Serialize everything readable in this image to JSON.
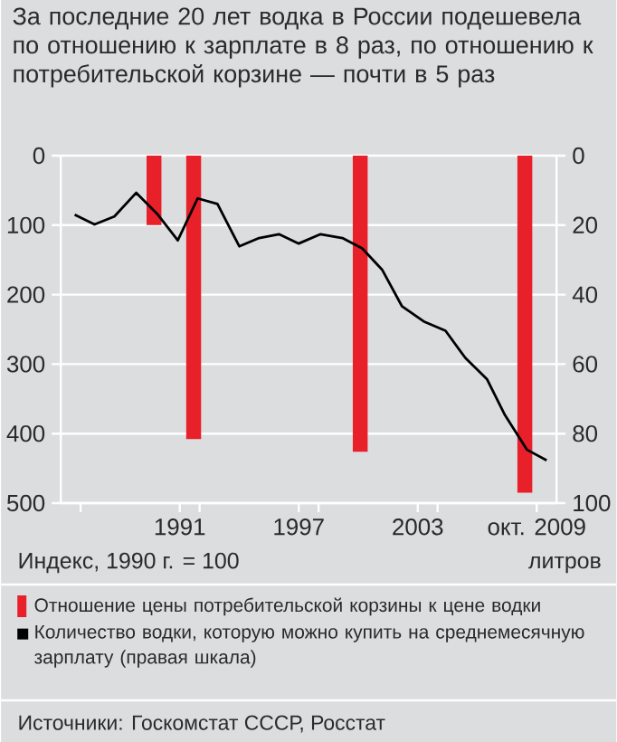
{
  "chart_data": {
    "type": "bar",
    "title": "За последние 20 лет водка в России подешевела по отношению к зарплате в 8 раз, по отношению к потребительской корзине — почти в 5 раз",
    "ylabel": "Индекс, 1990 г. = 100",
    "y2label": "литров",
    "xlim": [
      1985,
      2010
    ],
    "xticks": [
      {
        "value": 1986,
        "label": null
      },
      1991,
      {
        "value": 1992,
        "label": null
      },
      1997,
      {
        "value": 1998,
        "label": null
      },
      2003,
      {
        "value": 2004,
        "label": null
      },
      {
        "value": 2009,
        "label": "окт. 2009"
      }
    ],
    "ylim": [
      500,
      0
    ],
    "yticks": [
      0,
      100,
      200,
      300,
      400,
      500
    ],
    "y2lim": [
      100,
      0
    ],
    "y2ticks": [
      0,
      20,
      40,
      60,
      80,
      100
    ],
    "grid": "y",
    "legend": "bottom",
    "series": [
      {
        "name": "Отношение цены потребительской корзины к цене водки",
        "color": "#e8202a",
        "x": [
          1989.7,
          1991.7,
          2000.1,
          2008.4
        ],
        "values": [
          100,
          408,
          426,
          485
        ]
      },
      {
        "name": "Количество водки, которую можно купить на среднемесячную зарплату (правая шкала)",
        "type": "line",
        "axis": "y2",
        "color": "#000000",
        "x": [
          1985.7,
          1986.7,
          1987.7,
          1988.8,
          1989.9,
          1990.9,
          1991.9,
          1992.9,
          1994,
          1995,
          1996,
          1997,
          1998.1,
          1999.2,
          2000.2,
          2001.2,
          2002.2,
          2003.3,
          2004.4,
          2005.4,
          2006.5,
          2007.4,
          2008.5,
          2009.5
        ],
        "values": [
          17,
          19.8,
          17.5,
          10.7,
          17,
          24.4,
          12.3,
          13.9,
          26.1,
          23.7,
          22.6,
          25.3,
          22.6,
          23.7,
          26.7,
          32.8,
          43.3,
          47.7,
          50.4,
          58.2,
          64.4,
          74.7,
          84.6,
          87.7
        ]
      }
    ],
    "annotations": [
      "Источники: Госкомстат СССР, Росстат"
    ]
  }
}
